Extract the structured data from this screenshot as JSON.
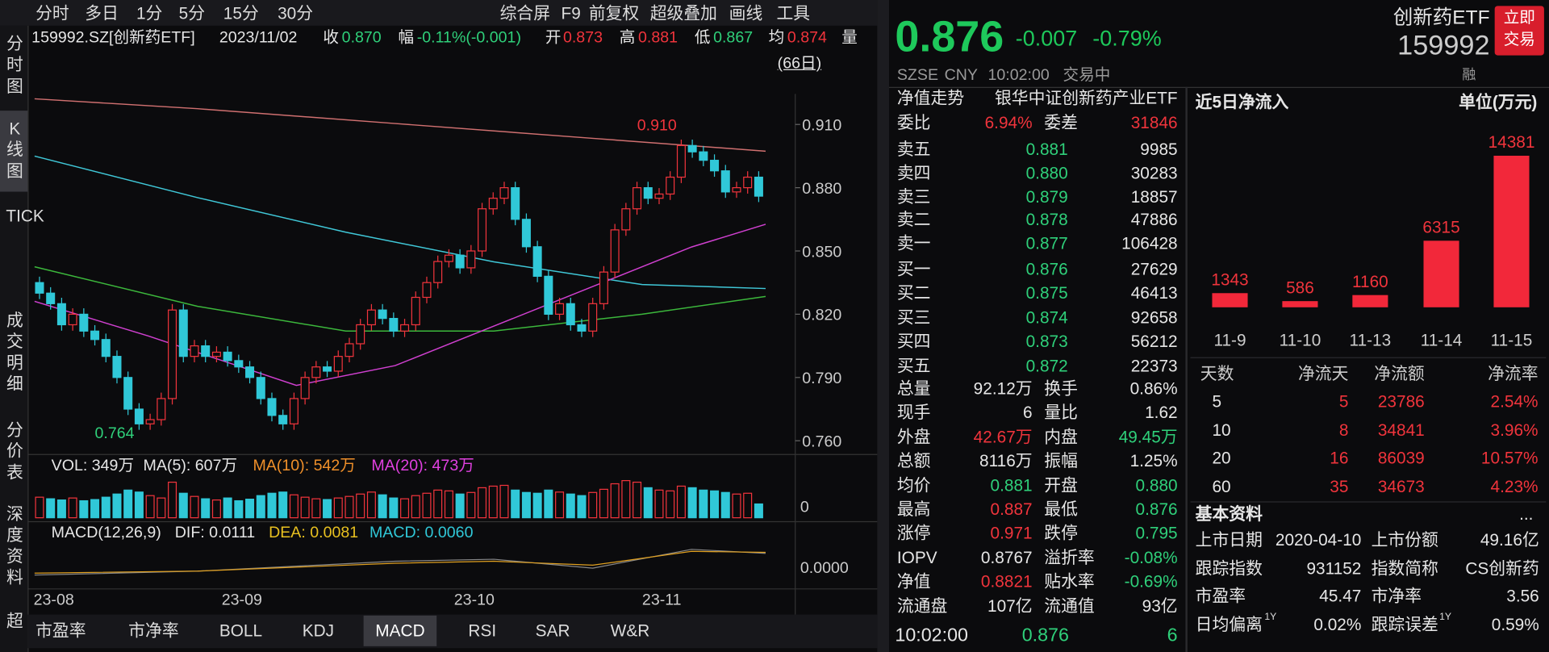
{
  "toolbar": {
    "tabs": [
      "分时",
      "多日",
      "1分",
      "5分",
      "15分",
      "30分"
    ],
    "right": [
      "综合屏",
      "F9",
      "前复权",
      "超级叠加",
      "画线",
      "工具"
    ]
  },
  "sidebar": [
    "分时图",
    "K线图",
    "TICK",
    "成交明细",
    "分价表",
    "深度资料",
    "超"
  ],
  "info": {
    "code": "159992.SZ[创新药ETF]",
    "date": "2023/11/02",
    "close_label": "收",
    "close": "0.870",
    "amp_label": "幅",
    "amp": "-0.11%(-0.001)",
    "open_label": "开",
    "open": "0.873",
    "high_label": "高",
    "high": "0.881",
    "low_label": "低",
    "low": "0.867",
    "avg_label": "均",
    "avg": "0.874",
    "extra": "量"
  },
  "period": "(66日)",
  "kline": {
    "ylim": [
      0.7544,
      0.9245
    ],
    "yticks": [
      {
        "value": 0.91,
        "label": "0.910"
      },
      {
        "value": 0.88,
        "label": "0.880"
      },
      {
        "value": 0.85,
        "label": "0.850"
      },
      {
        "value": 0.82,
        "label": "0.820"
      },
      {
        "value": 0.79,
        "label": "0.790"
      },
      {
        "value": 0.76,
        "label": "0.760"
      }
    ],
    "closes": [
      0.83,
      0.825,
      0.815,
      0.82,
      0.812,
      0.808,
      0.8,
      0.79,
      0.775,
      0.768,
      0.77,
      0.78,
      0.822,
      0.8,
      0.805,
      0.8,
      0.802,
      0.798,
      0.795,
      0.79,
      0.78,
      0.772,
      0.768,
      0.78,
      0.79,
      0.795,
      0.793,
      0.8,
      0.806,
      0.815,
      0.822,
      0.818,
      0.812,
      0.815,
      0.828,
      0.835,
      0.845,
      0.848,
      0.842,
      0.85,
      0.87,
      0.875,
      0.88,
      0.865,
      0.852,
      0.838,
      0.82,
      0.825,
      0.815,
      0.812,
      0.825,
      0.84,
      0.86,
      0.87,
      0.88,
      0.875,
      0.877,
      0.885,
      0.9,
      0.897,
      0.893,
      0.888,
      0.878,
      0.88,
      0.885,
      0.876
    ],
    "high_label": {
      "value": 0.91,
      "label": "0.910"
    },
    "low_label": {
      "value": 0.764,
      "label": "0.764"
    },
    "xticks": [
      {
        "index": 0,
        "label": "23-08"
      },
      {
        "index": 17,
        "label": "23-09"
      },
      {
        "index": 38,
        "label": "23-10"
      },
      {
        "index": 55,
        "label": "23-11"
      }
    ]
  },
  "volume": {
    "legend": [
      "VOL: 349万",
      "MA(5): 607万",
      "MA(10): 542万",
      "MA(20): 473万"
    ],
    "axis": "0",
    "ylim": [
      0,
      1000
    ],
    "values": [
      520,
      480,
      450,
      500,
      430,
      460,
      520,
      600,
      700,
      650,
      560,
      500,
      900,
      620,
      540,
      480,
      450,
      500,
      430,
      470,
      560,
      620,
      650,
      580,
      520,
      480,
      460,
      500,
      540,
      600,
      650,
      580,
      500,
      480,
      560,
      620,
      700,
      680,
      600,
      640,
      760,
      800,
      820,
      700,
      640,
      620,
      700,
      650,
      600,
      560,
      640,
      720,
      860,
      940,
      900,
      760,
      700,
      680,
      800,
      760,
      700,
      680,
      640,
      600,
      620,
      349
    ]
  },
  "macd": {
    "legend": [
      "MACD(12,26,9)",
      "DIF: 0.0111",
      "DEA: 0.0081",
      "MACD: 0.0060"
    ],
    "axis": "0.0000"
  },
  "bottom_tabs": [
    "市盈率",
    "市净率",
    "BOLL",
    "KDJ",
    "MACD",
    "RSI",
    "SAR",
    "W&R"
  ],
  "quote": {
    "price": "0.876",
    "change": "-0.007",
    "pct": "-0.79%",
    "name": "创新药ETF",
    "code": "159992",
    "button": [
      "立即",
      "交易"
    ],
    "exchange": "SZSE",
    "currency": "CNY",
    "time": "10:02:00",
    "status": "交易中",
    "icon": "融"
  },
  "book": {
    "nav": [
      "净值走势",
      "银华中证创新药产业ETF"
    ],
    "ratio": [
      "委比",
      "6.94%",
      "委差",
      "31846"
    ],
    "sells": [
      [
        "卖五",
        "0.881",
        "9985"
      ],
      [
        "卖四",
        "0.880",
        "30283"
      ],
      [
        "卖三",
        "0.879",
        "18857"
      ],
      [
        "卖二",
        "0.878",
        "47886"
      ],
      [
        "卖一",
        "0.877",
        "106428"
      ]
    ],
    "buys": [
      [
        "买一",
        "0.876",
        "27629"
      ],
      [
        "买二",
        "0.875",
        "46413"
      ],
      [
        "买三",
        "0.874",
        "92658"
      ],
      [
        "买四",
        "0.873",
        "56212"
      ],
      [
        "买五",
        "0.872",
        "22373"
      ]
    ],
    "stats": [
      [
        "总量",
        "92.12万",
        "换手",
        "0.86%"
      ],
      [
        "现手",
        "6",
        "量比",
        "1.62"
      ],
      [
        "外盘",
        "42.67万",
        "内盘",
        "49.45万"
      ],
      [
        "总额",
        "8116万",
        "振幅",
        "1.25%"
      ],
      [
        "均价",
        "0.881",
        "开盘",
        "0.880"
      ],
      [
        "最高",
        "0.887",
        "最低",
        "0.876"
      ],
      [
        "涨停",
        "0.971",
        "跌停",
        "0.795"
      ],
      [
        "IOPV",
        "0.8767",
        "溢折率",
        "-0.08%"
      ],
      [
        "净值",
        "0.8821",
        "贴水率",
        "-0.69%"
      ],
      [
        "流通盘",
        "107亿",
        "流通值",
        "93亿"
      ]
    ],
    "last": [
      "10:02:00",
      "0.876",
      "6"
    ]
  },
  "chart_data": {
    "type": "bar",
    "title": "近5日净流入",
    "unit": "单位(万元)",
    "categories": [
      "11-9",
      "11-10",
      "11-13",
      "11-14",
      "11-15"
    ],
    "values": [
      1343,
      586,
      1160,
      6315,
      14381
    ],
    "color": "#f2283a",
    "ylim": [
      0,
      15000
    ]
  },
  "flow_table": {
    "header": [
      "天数",
      "净流天",
      "净流额",
      "净流率"
    ],
    "rows": [
      [
        "5",
        "5",
        "23786",
        "2.54%"
      ],
      [
        "10",
        "8",
        "34841",
        "3.96%"
      ],
      [
        "20",
        "16",
        "86039",
        "10.57%"
      ],
      [
        "60",
        "35",
        "34673",
        "4.23%"
      ]
    ]
  },
  "basic": {
    "title": "基本资料",
    "more": "...",
    "sup": "1Y",
    "rows": [
      [
        "上市日期",
        "2020-04-10",
        "上市份额",
        "49.16亿"
      ],
      [
        "跟踪指数",
        "931152",
        "指数简称",
        "CS创新药"
      ],
      [
        "市盈率",
        "45.47",
        "市净率",
        "3.56"
      ],
      [
        "日均偏离",
        "0.02%",
        "跟踪误差",
        "0.59%"
      ]
    ]
  }
}
